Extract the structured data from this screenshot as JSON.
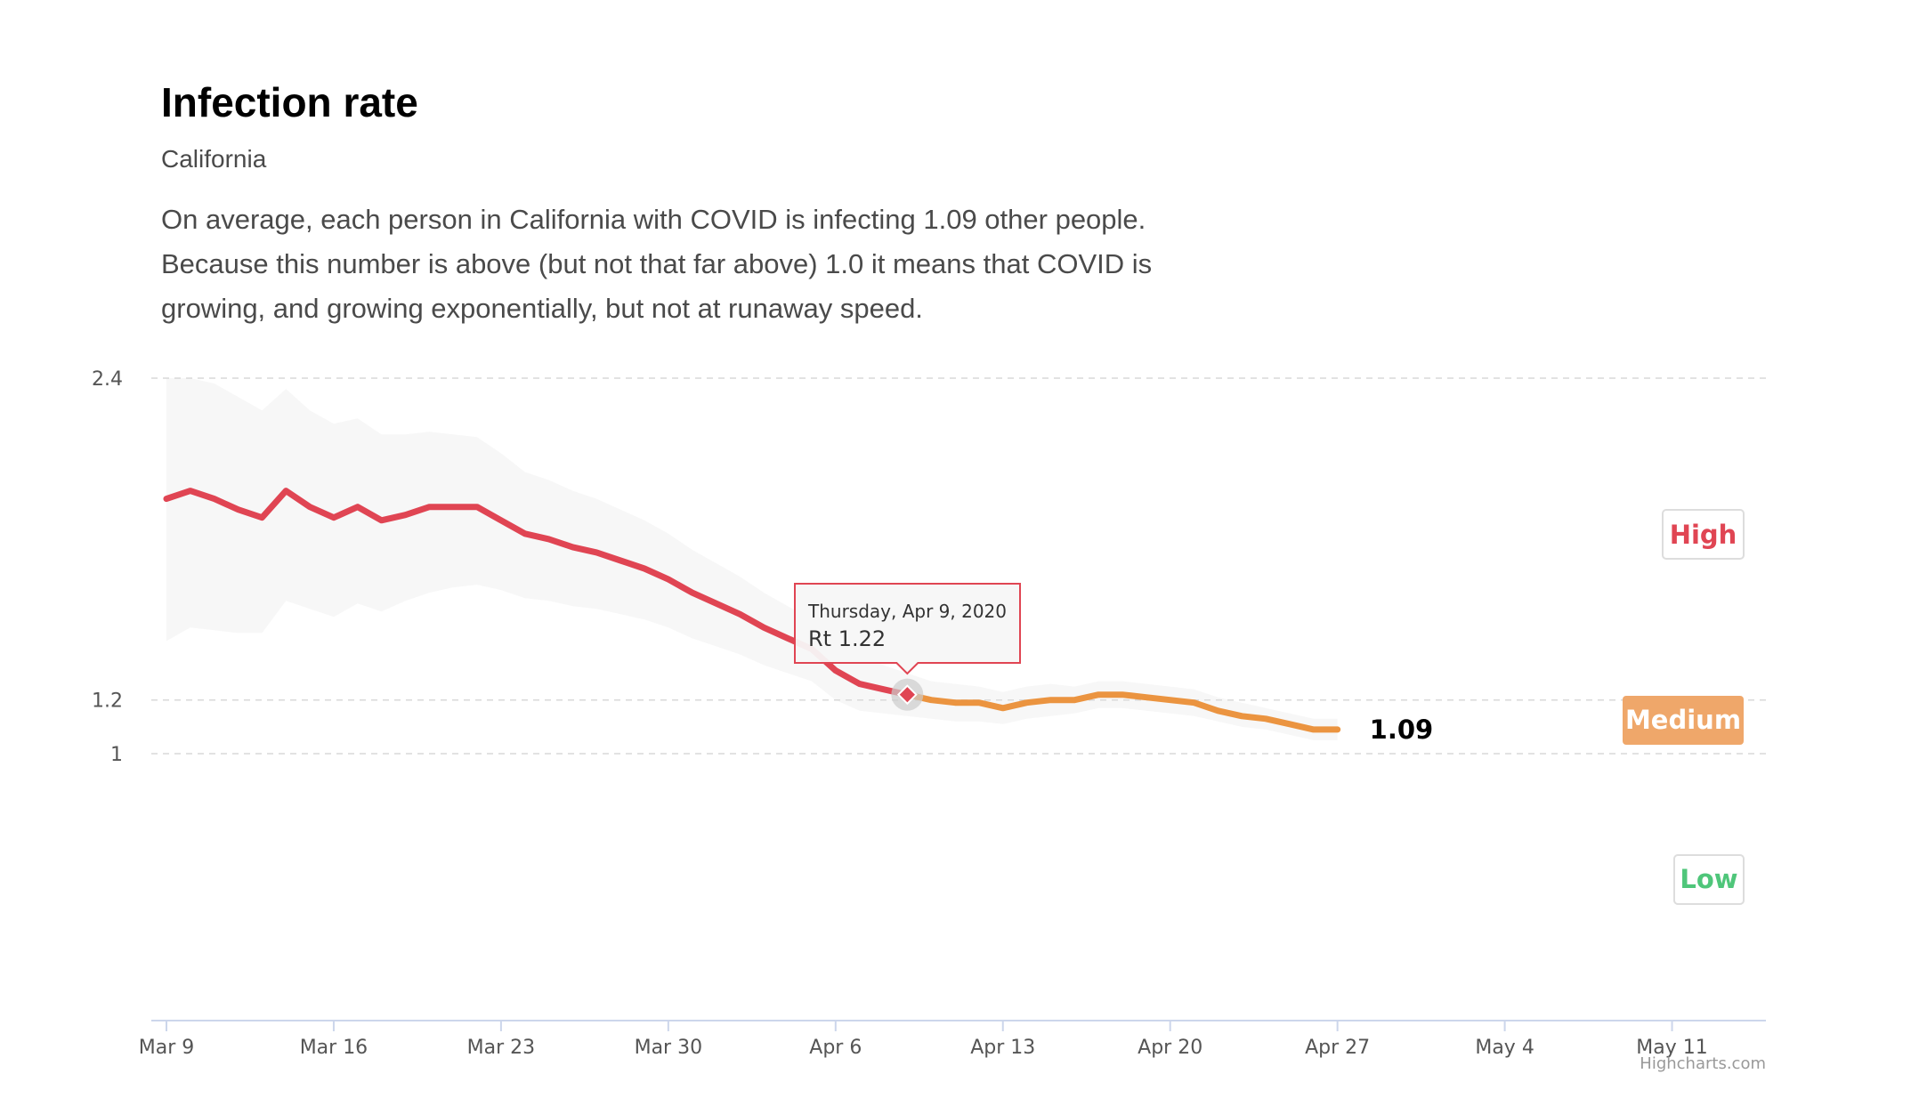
{
  "header": {
    "title": "Infection rate",
    "subtitle": "California",
    "description": "On average, each person in California with COVID is infecting 1.09 other people. Because this number is above (but not that far above) 1.0 it means that COVID is growing, and growing exponentially, but not at runaway speed."
  },
  "credits": "Highcharts.com",
  "colors": {
    "high": "#e04553",
    "medium": "#eb9440",
    "medium_badge": "#efa76a",
    "low": "#4fc67a",
    "band": "#f7f7f7",
    "grid": "#d9d9d9",
    "axis": "#ccd6eb"
  },
  "chart_data": {
    "type": "line",
    "title": "",
    "xlabel": "",
    "ylabel": "",
    "x_start": "2020-03-09",
    "x_ticks": [
      "Mar 9",
      "Mar 16",
      "Mar 23",
      "Mar 30",
      "Apr 6",
      "Apr 13",
      "Apr 20",
      "Apr 27",
      "May 4",
      "May 11"
    ],
    "y_ticks": [
      1,
      1.2,
      2.4
    ],
    "y_tick_labels": [
      "1",
      "1.2",
      "2.4"
    ],
    "ylim": [
      1,
      2.4
    ],
    "grid": true,
    "series": [
      {
        "dates": [
          "2020-03-09",
          "2020-03-10",
          "2020-03-11",
          "2020-03-12",
          "2020-03-13",
          "2020-03-14",
          "2020-03-15",
          "2020-03-16",
          "2020-03-17",
          "2020-03-18",
          "2020-03-19",
          "2020-03-20",
          "2020-03-21",
          "2020-03-22",
          "2020-03-23",
          "2020-03-24",
          "2020-03-25",
          "2020-03-26",
          "2020-03-27",
          "2020-03-28",
          "2020-03-29",
          "2020-03-30",
          "2020-03-31",
          "2020-04-01",
          "2020-04-02",
          "2020-04-03",
          "2020-04-04",
          "2020-04-05",
          "2020-04-06",
          "2020-04-07",
          "2020-04-08",
          "2020-04-09",
          "2020-04-10",
          "2020-04-11",
          "2020-04-12",
          "2020-04-13",
          "2020-04-14",
          "2020-04-15",
          "2020-04-16",
          "2020-04-17",
          "2020-04-18",
          "2020-04-19",
          "2020-04-20",
          "2020-04-21",
          "2020-04-22",
          "2020-04-23",
          "2020-04-24",
          "2020-04-25",
          "2020-04-26",
          "2020-04-27"
        ],
        "values": [
          1.95,
          1.98,
          1.95,
          1.91,
          1.88,
          1.98,
          1.92,
          1.88,
          1.92,
          1.87,
          1.89,
          1.92,
          1.92,
          1.92,
          1.87,
          1.82,
          1.8,
          1.77,
          1.75,
          1.72,
          1.69,
          1.65,
          1.6,
          1.56,
          1.52,
          1.47,
          1.43,
          1.39,
          1.31,
          1.26,
          1.24,
          1.22,
          1.2,
          1.19,
          1.19,
          1.17,
          1.19,
          1.2,
          1.2,
          1.22,
          1.22,
          1.21,
          1.2,
          1.19,
          1.16,
          1.14,
          1.13,
          1.11,
          1.09,
          1.09
        ],
        "lower": [
          1.42,
          1.47,
          1.46,
          1.45,
          1.45,
          1.57,
          1.54,
          1.51,
          1.56,
          1.53,
          1.57,
          1.6,
          1.62,
          1.63,
          1.61,
          1.58,
          1.57,
          1.55,
          1.54,
          1.52,
          1.5,
          1.47,
          1.43,
          1.4,
          1.37,
          1.33,
          1.3,
          1.27,
          1.2,
          1.16,
          1.15,
          1.14,
          1.13,
          1.12,
          1.12,
          1.11,
          1.13,
          1.14,
          1.15,
          1.17,
          1.17,
          1.16,
          1.15,
          1.14,
          1.12,
          1.1,
          1.09,
          1.07,
          1.05,
          1.05
        ],
        "upper": [
          2.4,
          2.4,
          2.38,
          2.33,
          2.28,
          2.36,
          2.28,
          2.23,
          2.25,
          2.19,
          2.19,
          2.2,
          2.19,
          2.18,
          2.12,
          2.05,
          2.02,
          1.98,
          1.95,
          1.91,
          1.87,
          1.82,
          1.76,
          1.71,
          1.66,
          1.6,
          1.55,
          1.5,
          1.42,
          1.36,
          1.33,
          1.3,
          1.27,
          1.26,
          1.25,
          1.23,
          1.25,
          1.26,
          1.25,
          1.27,
          1.27,
          1.26,
          1.25,
          1.24,
          1.21,
          1.19,
          1.17,
          1.15,
          1.13,
          1.13
        ]
      }
    ],
    "zones": [
      {
        "label": "High",
        "min": 1.4
      },
      {
        "label": "Medium",
        "min": 1.1,
        "max": 1.4
      },
      {
        "label": "Low",
        "max": 1.1
      }
    ],
    "last_value_label": "1.09",
    "tooltip": {
      "date_text": "Thursday, Apr 9, 2020",
      "value_text": "Rt 1.22",
      "date": "2020-04-09",
      "value": 1.22
    }
  }
}
